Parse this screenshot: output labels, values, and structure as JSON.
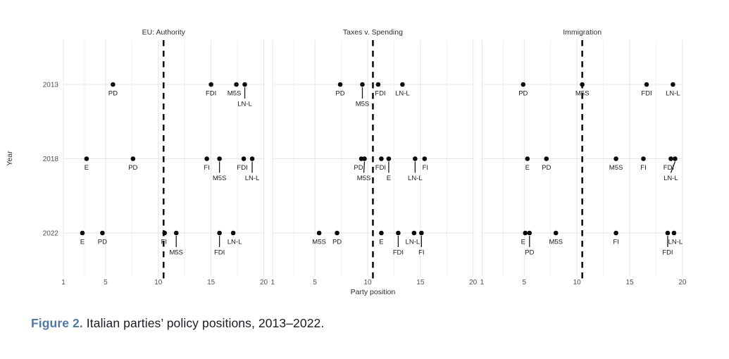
{
  "figure": {
    "caption_label": "Figure 2.",
    "caption_text": " Italian parties’ policy positions, 2013–2022."
  },
  "colors": {
    "caption_label_blue": "#4f79a6",
    "caption_text_dark": "#1b1b23",
    "grid_major": "#e4e4e4",
    "grid_minor": "#f0f0f0",
    "tick_label": "#4f4f4f",
    "axis_title": "#2e2e2e",
    "point": "#0a0a0a",
    "party_label": "#1a1a1a",
    "reference_line": "#111111"
  },
  "chart_data": {
    "type": "scatter",
    "title": "",
    "xlabel": "Party position",
    "ylabel": "Year",
    "xlim": [
      1,
      20
    ],
    "x_ticks": [
      1,
      5,
      10,
      15,
      20
    ],
    "x_minor_ticks": [
      3,
      7.5,
      12.5,
      17.5
    ],
    "years": [
      "2013",
      "2018",
      "2022"
    ],
    "reference_line_x": 10.5,
    "legend": "none",
    "grid": "on",
    "panels": [
      {
        "title": "EU: Authority",
        "rows": [
          {
            "year": "2013",
            "points": [
              {
                "party": "PD",
                "x": 5.7,
                "lvl": 1,
                "dx": 0
              },
              {
                "party": "FDI",
                "x": 15.0,
                "lvl": 1,
                "dx": 0
              },
              {
                "party": "M5S",
                "x": 17.4,
                "lvl": 1,
                "dx": -3
              },
              {
                "party": "LN-L",
                "x": 18.2,
                "lvl": 2,
                "dx": 0
              }
            ]
          },
          {
            "year": "2018",
            "points": [
              {
                "party": "E",
                "x": 3.2,
                "lvl": 1,
                "dx": 0
              },
              {
                "party": "PD",
                "x": 7.6,
                "lvl": 1,
                "dx": 0
              },
              {
                "party": "FI",
                "x": 14.6,
                "lvl": 1,
                "dx": 0
              },
              {
                "party": "M5S",
                "x": 15.8,
                "lvl": 2,
                "dx": 0
              },
              {
                "party": "FDI",
                "x": 18.1,
                "lvl": 1,
                "dx": -2
              },
              {
                "party": "LN-L",
                "x": 18.9,
                "lvl": 2,
                "dx": 0
              }
            ]
          },
          {
            "year": "2022",
            "points": [
              {
                "party": "E",
                "x": 2.8,
                "lvl": 1,
                "dx": 0
              },
              {
                "party": "PD",
                "x": 4.7,
                "lvl": 1,
                "dx": 0
              },
              {
                "party": "FI",
                "x": 10.6,
                "lvl": 1,
                "dx": -1
              },
              {
                "party": "M5S",
                "x": 11.7,
                "lvl": 2,
                "dx": 0
              },
              {
                "party": "FDI",
                "x": 15.8,
                "lvl": 2,
                "dx": 0
              },
              {
                "party": "LN-L",
                "x": 17.1,
                "lvl": 1,
                "dx": 2
              }
            ]
          }
        ]
      },
      {
        "title": "Taxes v. Spending",
        "rows": [
          {
            "year": "2013",
            "points": [
              {
                "party": "PD",
                "x": 7.4,
                "lvl": 1,
                "dx": 0
              },
              {
                "party": "M5S",
                "x": 9.5,
                "lvl": 2,
                "dx": 0
              },
              {
                "party": "FDI",
                "x": 11.0,
                "lvl": 1,
                "dx": 3
              },
              {
                "party": "LN-L",
                "x": 13.3,
                "lvl": 1,
                "dx": 0
              }
            ]
          },
          {
            "year": "2018",
            "points": [
              {
                "party": "PD",
                "x": 9.4,
                "lvl": 1,
                "dx": -4
              },
              {
                "party": "M5S",
                "x": 9.7,
                "lvl": 2,
                "dx": -1
              },
              {
                "party": "FDI",
                "x": 11.3,
                "lvl": 1,
                "dx": -1
              },
              {
                "party": "E",
                "x": 12.0,
                "lvl": 2,
                "dx": 0
              },
              {
                "party": "LN-L",
                "x": 14.5,
                "lvl": 2,
                "dx": 0
              },
              {
                "party": "FI",
                "x": 15.4,
                "lvl": 1,
                "dx": 1
              }
            ]
          },
          {
            "year": "2022",
            "points": [
              {
                "party": "M5S",
                "x": 5.4,
                "lvl": 1,
                "dx": 0
              },
              {
                "party": "PD",
                "x": 7.1,
                "lvl": 1,
                "dx": 0
              },
              {
                "party": "E",
                "x": 11.3,
                "lvl": 1,
                "dx": 0
              },
              {
                "party": "FDI",
                "x": 12.9,
                "lvl": 2,
                "dx": 0
              },
              {
                "party": "LN-L",
                "x": 14.4,
                "lvl": 1,
                "dx": -2
              },
              {
                "party": "FI",
                "x": 15.1,
                "lvl": 2,
                "dx": 0
              }
            ]
          }
        ]
      },
      {
        "title": "Immigration",
        "rows": [
          {
            "year": "2013",
            "points": [
              {
                "party": "PD",
                "x": 4.9,
                "lvl": 1,
                "dx": 0
              },
              {
                "party": "M5S",
                "x": 10.5,
                "lvl": 1,
                "dx": 0
              },
              {
                "party": "FDI",
                "x": 16.6,
                "lvl": 1,
                "dx": 0
              },
              {
                "party": "LN-L",
                "x": 19.1,
                "lvl": 1,
                "dx": 0
              }
            ]
          },
          {
            "year": "2018",
            "points": [
              {
                "party": "E",
                "x": 5.3,
                "lvl": 1,
                "dx": 0
              },
              {
                "party": "PD",
                "x": 7.1,
                "lvl": 1,
                "dx": 0
              },
              {
                "party": "M5S",
                "x": 13.7,
                "lvl": 1,
                "dx": 0
              },
              {
                "party": "FI",
                "x": 16.3,
                "lvl": 1,
                "dx": 0
              },
              {
                "party": "FDI",
                "x": 18.9,
                "lvl": 1,
                "dx": -3
              },
              {
                "party": "LN-L",
                "x": 19.3,
                "lvl": 2,
                "dx": -6
              }
            ]
          },
          {
            "year": "2022",
            "points": [
              {
                "party": "E",
                "x": 5.1,
                "lvl": 1,
                "dx": -3
              },
              {
                "party": "PD",
                "x": 5.5,
                "lvl": 2,
                "dx": 0
              },
              {
                "party": "M5S",
                "x": 8.0,
                "lvl": 1,
                "dx": 0
              },
              {
                "party": "FI",
                "x": 13.7,
                "lvl": 1,
                "dx": 0
              },
              {
                "party": "FDI",
                "x": 18.6,
                "lvl": 2,
                "dx": 0
              },
              {
                "party": "LN-L",
                "x": 19.2,
                "lvl": 1,
                "dx": 2
              }
            ]
          }
        ]
      }
    ]
  }
}
